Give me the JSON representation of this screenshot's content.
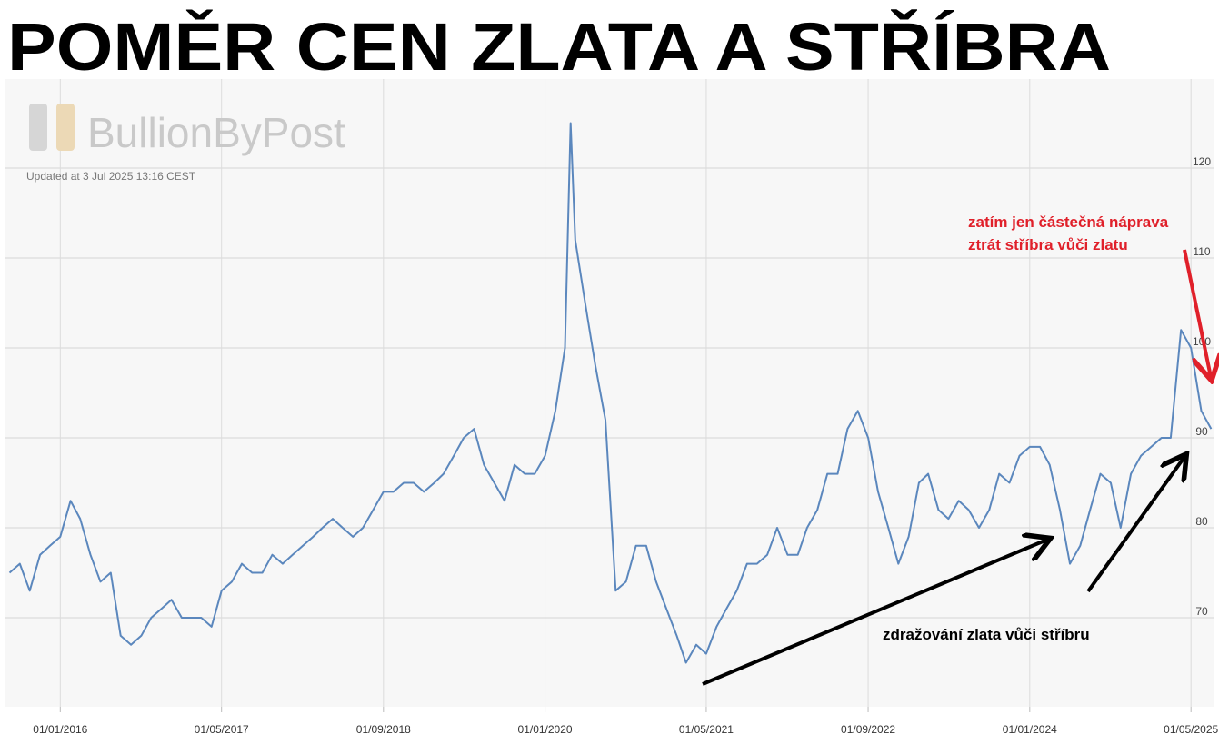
{
  "chart_data": {
    "type": "line",
    "title": "POMĚR CEN ZLATA A STŘÍBRA",
    "watermark": "BullionByPost",
    "subtitle": "Updated at 3 Jul 2025 13:16 CEST",
    "annotations": [
      "zatím jen částečná náprava",
      "ztrát stříbra vůči zlatu",
      "zdražování zlata vůči stříbru"
    ],
    "color": "#5b87bd",
    "grid": true,
    "xlim": [
      "2015-07-17",
      "2025-07-08"
    ],
    "xticks": [
      {
        "value": "2016-01-01",
        "label": "01/01/2016"
      },
      {
        "value": "2017-05-01",
        "label": "01/05/2017"
      },
      {
        "value": "2018-09-01",
        "label": "01/09/2018"
      },
      {
        "value": "2020-01-01",
        "label": "01/01/2020"
      },
      {
        "value": "2021-05-01",
        "label": "01/05/2021"
      },
      {
        "value": "2022-09-01",
        "label": "01/09/2022"
      },
      {
        "value": "2024-01-01",
        "label": "01/01/2024"
      },
      {
        "value": "2025-05-01",
        "label": "01/05/2025"
      }
    ],
    "ylim": [
      60.1,
      129.9
    ],
    "yticks": [
      70,
      80,
      90,
      100,
      110,
      120
    ],
    "x": [
      "2015-08-01",
      "2015-09-01",
      "2015-10-01",
      "2015-11-01",
      "2015-12-01",
      "2016-01-01",
      "2016-02-01",
      "2016-03-01",
      "2016-04-01",
      "2016-05-01",
      "2016-06-01",
      "2016-07-01",
      "2016-08-01",
      "2016-09-01",
      "2016-10-01",
      "2016-11-01",
      "2016-12-01",
      "2017-01-01",
      "2017-02-01",
      "2017-03-01",
      "2017-04-01",
      "2017-05-01",
      "2017-06-01",
      "2017-07-01",
      "2017-08-01",
      "2017-09-01",
      "2017-10-01",
      "2017-11-01",
      "2017-12-01",
      "2018-01-01",
      "2018-02-01",
      "2018-03-01",
      "2018-04-01",
      "2018-05-01",
      "2018-06-01",
      "2018-07-01",
      "2018-08-01",
      "2018-09-01",
      "2018-10-01",
      "2018-11-01",
      "2018-12-01",
      "2019-01-01",
      "2019-02-01",
      "2019-03-01",
      "2019-04-01",
      "2019-05-01",
      "2019-06-01",
      "2019-07-01",
      "2019-08-01",
      "2019-09-01",
      "2019-10-01",
      "2019-11-01",
      "2019-12-01",
      "2020-01-01",
      "2020-02-01",
      "2020-03-01",
      "2020-03-18",
      "2020-04-01",
      "2020-05-01",
      "2020-06-01",
      "2020-07-01",
      "2020-08-01",
      "2020-09-01",
      "2020-10-01",
      "2020-11-01",
      "2020-12-01",
      "2021-01-01",
      "2021-02-01",
      "2021-03-01",
      "2021-04-01",
      "2021-05-01",
      "2021-06-01",
      "2021-07-01",
      "2021-08-01",
      "2021-09-01",
      "2021-10-01",
      "2021-11-01",
      "2021-12-01",
      "2022-01-01",
      "2022-02-01",
      "2022-03-01",
      "2022-04-01",
      "2022-05-01",
      "2022-06-01",
      "2022-07-01",
      "2022-08-01",
      "2022-09-01",
      "2022-10-01",
      "2022-11-01",
      "2022-12-01",
      "2023-01-01",
      "2023-02-01",
      "2023-03-01",
      "2023-04-01",
      "2023-05-01",
      "2023-06-01",
      "2023-07-01",
      "2023-08-01",
      "2023-09-01",
      "2023-10-01",
      "2023-11-01",
      "2023-12-01",
      "2024-01-01",
      "2024-02-01",
      "2024-03-01",
      "2024-04-01",
      "2024-05-01",
      "2024-06-01",
      "2024-07-01",
      "2024-08-01",
      "2024-09-01",
      "2024-10-01",
      "2024-11-01",
      "2024-12-01",
      "2025-01-01",
      "2025-02-01",
      "2025-03-01",
      "2025-04-01",
      "2025-05-01",
      "2025-06-01",
      "2025-07-01"
    ],
    "values": [
      75,
      76,
      73,
      77,
      78,
      79,
      83,
      81,
      77,
      74,
      75,
      68,
      67,
      68,
      70,
      71,
      72,
      70,
      70,
      70,
      69,
      73,
      74,
      76,
      75,
      75,
      77,
      76,
      77,
      78,
      79,
      80,
      81,
      80,
      79,
      80,
      82,
      84,
      84,
      85,
      85,
      84,
      85,
      86,
      88,
      90,
      91,
      87,
      85,
      83,
      87,
      86,
      86,
      88,
      93,
      100,
      125,
      112,
      105,
      98,
      92,
      73,
      74,
      78,
      78,
      74,
      71,
      68,
      65,
      67,
      66,
      69,
      71,
      73,
      76,
      76,
      77,
      80,
      77,
      77,
      80,
      82,
      86,
      86,
      91,
      93,
      90,
      84,
      80,
      76,
      79,
      85,
      86,
      82,
      81,
      83,
      82,
      80,
      82,
      86,
      85,
      88,
      89,
      89,
      87,
      82,
      76,
      78,
      82,
      86,
      85,
      80,
      86,
      88,
      89,
      90,
      90,
      102,
      100,
      93,
      91
    ]
  }
}
